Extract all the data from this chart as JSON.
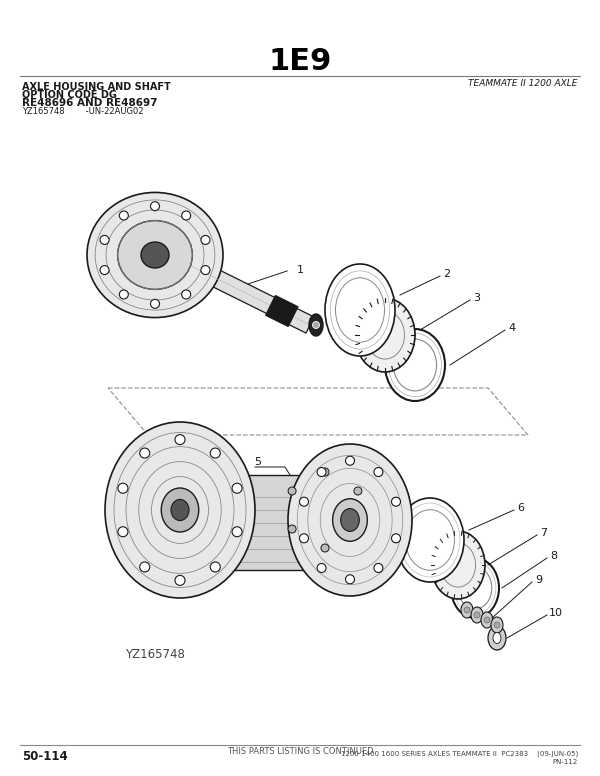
{
  "title": "1E9",
  "subtitle_right": "TEAMMATE II 1200 AXLE",
  "header_lines": [
    [
      "AXLE HOUSING AND SHAFT",
      7,
      "bold"
    ],
    [
      "OPTION CODE DG",
      7,
      "bold"
    ],
    [
      "RE48696 AND RE48697",
      7.5,
      "bold"
    ],
    [
      "YZ165748        -UN-22AUG02",
      6,
      "normal"
    ]
  ],
  "footer_left": "50-114",
  "footer_center": "THIS PARTS LISTING IS CONTINUED",
  "footer_right": "1200 1400 1600 SERIES AXLES TEAMMATE II  PC2383    (09-JUN-05)",
  "footer_right2": "PN-112",
  "watermark": "YZ165748",
  "bg": "#ffffff",
  "dark": "#1a1a1a",
  "mid": "#555555",
  "light": "#aaaaaa",
  "lighter": "#cccccc",
  "lightest": "#e8e8e8"
}
